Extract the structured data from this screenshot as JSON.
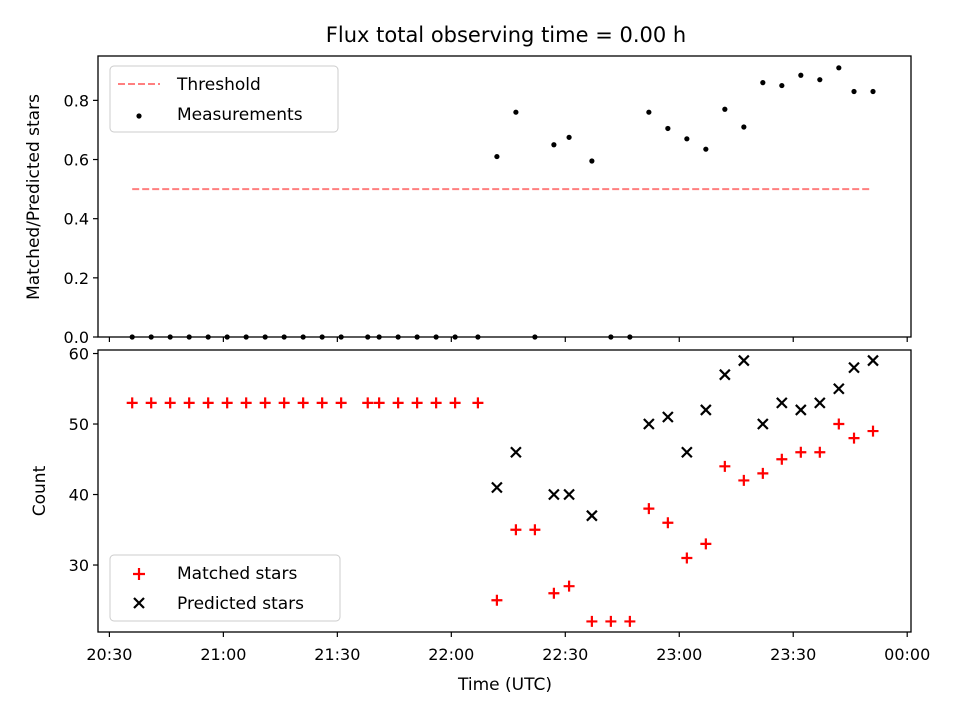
{
  "chart_data": {
    "title": "Flux total observing time = 0.00 h",
    "xlabel": "Time (UTC)",
    "x_tick_labels": [
      "20:30",
      "21:00",
      "21:30",
      "22:00",
      "22:30",
      "23:00",
      "23:30",
      "00:00"
    ],
    "x_range": [
      "20:27",
      "00:01"
    ],
    "panels": [
      {
        "type": "scatter",
        "ylabel": "Matched/Predicted stars",
        "ylim": [
          0,
          0.95
        ],
        "y_ticks": [
          0.0,
          0.2,
          0.4,
          0.6,
          0.8
        ],
        "y_tick_labels": [
          "0.0",
          "0.2",
          "0.4",
          "0.6",
          "0.8"
        ],
        "legend": {
          "placement": "top-left",
          "entries": [
            "Threshold",
            "Measurements"
          ]
        },
        "threshold": {
          "name": "Threshold",
          "value": 0.5,
          "from": "20:36",
          "to": "23:50",
          "color": "#ff7f7f",
          "style": "dashed"
        },
        "series": [
          {
            "name": "Measurements",
            "marker": "dot",
            "color": "#000000",
            "x": [
              "20:36",
              "20:41",
              "20:46",
              "20:51",
              "20:56",
              "21:01",
              "21:06",
              "21:11",
              "21:16",
              "21:21",
              "21:26",
              "21:31",
              "21:38",
              "21:41",
              "21:46",
              "21:51",
              "21:56",
              "22:01",
              "22:07",
              "22:12",
              "22:17",
              "22:22",
              "22:27",
              "22:31",
              "22:37",
              "22:42",
              "22:47",
              "22:52",
              "22:57",
              "23:02",
              "23:07",
              "23:12",
              "23:17",
              "23:22",
              "23:27",
              "23:32",
              "23:37",
              "23:42",
              "23:46",
              "23:51"
            ],
            "y": [
              0,
              0,
              0,
              0,
              0,
              0,
              0,
              0,
              0,
              0,
              0,
              0,
              0,
              0,
              0,
              0,
              0,
              0,
              0,
              0.61,
              0.76,
              0,
              0.65,
              0.675,
              0.595,
              0,
              0,
              0.76,
              0.705,
              0.67,
              0.635,
              0.77,
              0.71,
              0.86,
              0.85,
              0.885,
              0.87,
              0.91,
              0.83,
              0.83
            ]
          }
        ]
      },
      {
        "type": "scatter",
        "ylabel": "Count",
        "ylim": [
          20.5,
          60.5
        ],
        "y_ticks": [
          30,
          40,
          50,
          60
        ],
        "y_tick_labels": [
          "30",
          "40",
          "50",
          "60"
        ],
        "legend": {
          "placement": "bottom-left",
          "entries": [
            "Matched stars",
            "Predicted stars"
          ]
        },
        "series": [
          {
            "name": "Matched stars",
            "marker": "plus",
            "color": "#ff0000",
            "x": [
              "20:36",
              "20:41",
              "20:46",
              "20:51",
              "20:56",
              "21:01",
              "21:06",
              "21:11",
              "21:16",
              "21:21",
              "21:26",
              "21:31",
              "21:38",
              "21:41",
              "21:46",
              "21:51",
              "21:56",
              "22:01",
              "22:07",
              "22:12",
              "22:17",
              "22:22",
              "22:27",
              "22:31",
              "22:37",
              "22:42",
              "22:47",
              "22:52",
              "22:57",
              "23:02",
              "23:07",
              "23:12",
              "23:17",
              "23:22",
              "23:27",
              "23:32",
              "23:37",
              "23:42",
              "23:46",
              "23:51"
            ],
            "y": [
              53,
              53,
              53,
              53,
              53,
              53,
              53,
              53,
              53,
              53,
              53,
              53,
              53,
              53,
              53,
              53,
              53,
              53,
              53,
              25,
              35,
              35,
              26,
              27,
              22,
              22,
              22,
              38,
              36,
              31,
              33,
              44,
              42,
              43,
              45,
              46,
              46,
              50,
              48,
              49
            ]
          },
          {
            "name": "Predicted stars",
            "marker": "x",
            "color": "#000000",
            "x": [
              "22:12",
              "22:17",
              "22:27",
              "22:31",
              "22:37",
              "22:52",
              "22:57",
              "23:02",
              "23:07",
              "23:12",
              "23:17",
              "23:22",
              "23:27",
              "23:32",
              "23:37",
              "23:42",
              "23:46",
              "23:51"
            ],
            "y": [
              41,
              46,
              40,
              40,
              37,
              50,
              51,
              46,
              52,
              57,
              59,
              50,
              53,
              52,
              53,
              55,
              58,
              59
            ]
          }
        ]
      }
    ]
  }
}
